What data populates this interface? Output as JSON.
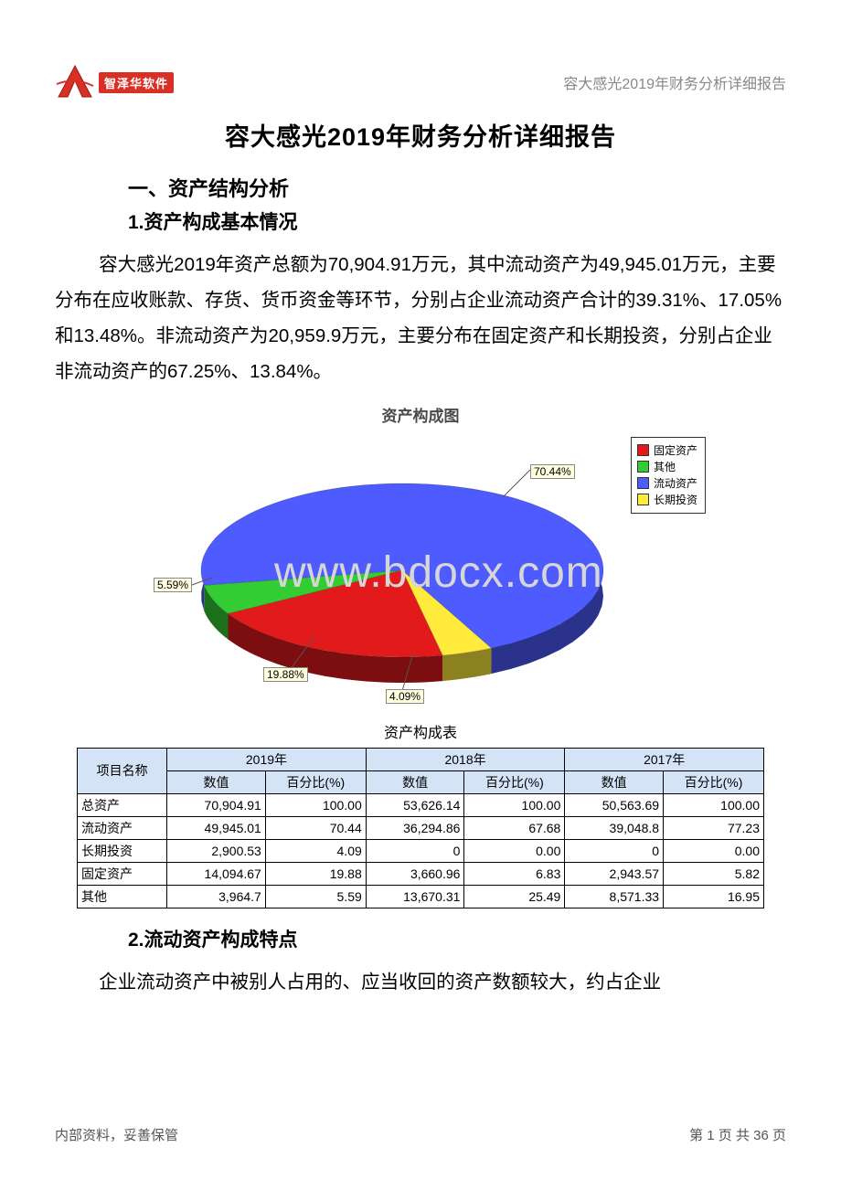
{
  "header_right": "容大感光2019年财务分析详细报告",
  "logo_brand": "智泽华软件",
  "title": "容大感光2019年财务分析详细报告",
  "section1": "一、资产结构分析",
  "sub1": "1.资产构成基本情况",
  "para1": "容大感光2019年资产总额为70,904.91万元，其中流动资产为49,945.01万元，主要分布在应收账款、存货、货币资金等环节，分别占企业流动资产合计的39.31%、17.05%和13.48%。非流动资产为20,959.9万元，主要分布在固定资产和长期投资，分别占企业非流动资产的67.25%、13.84%。",
  "chart": {
    "title": "资产构成图",
    "type": "pie",
    "background_color": "#ffffff",
    "slices": [
      {
        "label": "固定资产",
        "pct": 19.88,
        "color": "#e31a1c"
      },
      {
        "label": "其他",
        "pct": 5.59,
        "color": "#33cc33"
      },
      {
        "label": "流动资产",
        "pct": 70.44,
        "color": "#4d5bff"
      },
      {
        "label": "长期投资",
        "pct": 4.09,
        "color": "#ffeb3b"
      }
    ],
    "callouts": {
      "liudong": "70.44%",
      "qita": "5.59%",
      "guding": "19.88%",
      "changqi": "4.09%"
    },
    "legend_items": [
      {
        "color": "#e31a1c",
        "label": "固定资产"
      },
      {
        "color": "#33cc33",
        "label": "其他"
      },
      {
        "color": "#4d5bff",
        "label": "流动资产"
      },
      {
        "color": "#ffeb3b",
        "label": "长期投资"
      }
    ]
  },
  "watermark": "www.bdocx.com",
  "table": {
    "title": "资产构成表",
    "header_bg": "#d5e3f6",
    "col_name": "项目名称",
    "years": [
      "2019年",
      "2018年",
      "2017年"
    ],
    "sub_cols": [
      "数值",
      "百分比(%)"
    ],
    "rows": [
      {
        "name": "总资产",
        "v": [
          "70,904.91",
          "100.00",
          "53,626.14",
          "100.00",
          "50,563.69",
          "100.00"
        ]
      },
      {
        "name": "流动资产",
        "v": [
          "49,945.01",
          "70.44",
          "36,294.86",
          "67.68",
          "39,048.8",
          "77.23"
        ]
      },
      {
        "name": "长期投资",
        "v": [
          "2,900.53",
          "4.09",
          "0",
          "0.00",
          "0",
          "0.00"
        ]
      },
      {
        "name": "固定资产",
        "v": [
          "14,094.67",
          "19.88",
          "3,660.96",
          "6.83",
          "2,943.57",
          "5.82"
        ]
      },
      {
        "name": "其他",
        "v": [
          "3,964.7",
          "5.59",
          "13,670.31",
          "25.49",
          "8,571.33",
          "16.95"
        ]
      }
    ]
  },
  "sub2": "2.流动资产构成特点",
  "para2": "企业流动资产中被别人占用的、应当收回的资产数额较大，约占企业",
  "footer_left": "内部资料，妥善保管",
  "footer_right": "第 1 页  共 36 页"
}
